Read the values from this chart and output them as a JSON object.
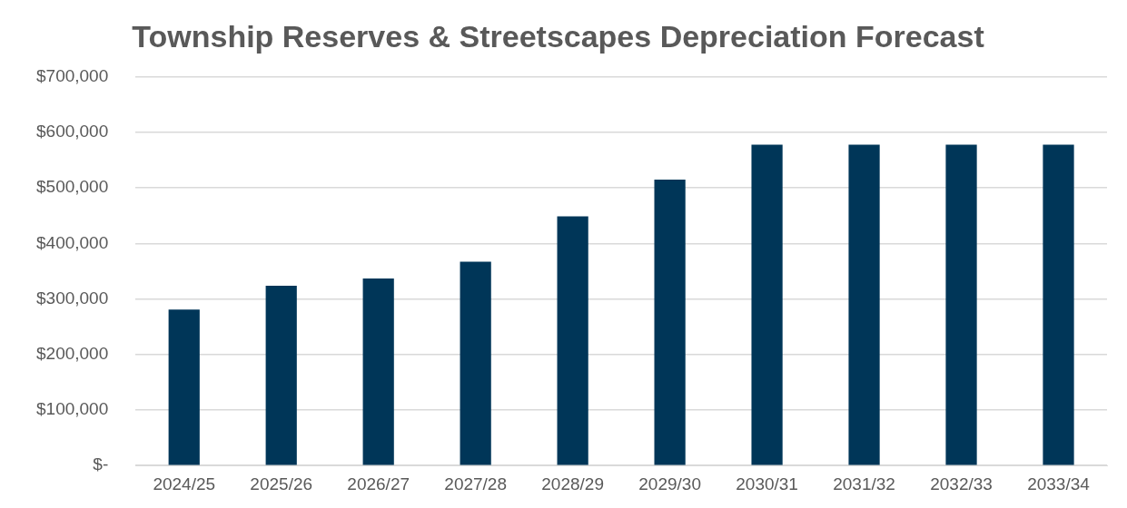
{
  "chart_data": {
    "type": "bar",
    "title": "Township Reserves & Streetscapes Depreciation Forecast",
    "categories": [
      "2024/25",
      "2025/26",
      "2026/27",
      "2027/28",
      "2028/29",
      "2029/30",
      "2030/31",
      "2031/32",
      "2032/33",
      "2033/34"
    ],
    "values": [
      281000,
      324000,
      337000,
      367000,
      449000,
      515000,
      578000,
      578000,
      578000,
      578000
    ],
    "color": "#003658",
    "ylim": [
      0,
      700000
    ],
    "yticks": [
      {
        "value": 0,
        "label": "$-"
      },
      {
        "value": 100000,
        "label": "$100,000"
      },
      {
        "value": 200000,
        "label": "$200,000"
      },
      {
        "value": 300000,
        "label": "$300,000"
      },
      {
        "value": 400000,
        "label": "$400,000"
      },
      {
        "value": 500000,
        "label": "$500,000"
      },
      {
        "value": 600000,
        "label": "$600,000"
      },
      {
        "value": 700000,
        "label": "$700,000"
      }
    ],
    "grid": "y",
    "legend": false
  }
}
